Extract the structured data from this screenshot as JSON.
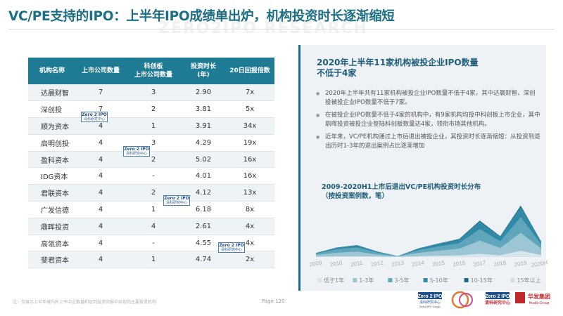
{
  "title": "VC/PE支持的IPO：上半年IPO成绩单出炉，机构投资时长逐渐缩短",
  "watermark": "ZERO2IPO RESEARCH",
  "table": {
    "headers": [
      "机构名称",
      "上市公司数量",
      "科创板\n上市公司数量",
      "投资时长\n(年)",
      "20日回报倍数"
    ],
    "rows": [
      [
        "达晨财智",
        "7",
        "3",
        "2.90",
        "7x"
      ],
      [
        "深创投",
        "7",
        "2",
        "3.81",
        "5x"
      ],
      [
        "顺为资本",
        "4",
        "1",
        "3.91",
        "34x"
      ],
      [
        "启明创投",
        "4",
        "3",
        "4.29",
        "19x"
      ],
      [
        "盈科资本",
        "4",
        "2",
        "5.02",
        "16x"
      ],
      [
        "IDG资本",
        "4",
        "-",
        "4.01",
        "16x"
      ],
      [
        "君联资本",
        "4",
        "2",
        "4.12",
        "13x"
      ],
      [
        "广发信德",
        "4",
        "1",
        "6.18",
        "8x"
      ],
      [
        "鼎晖投资",
        "4",
        "4",
        "2.61",
        "4x"
      ],
      [
        "高瓴资本",
        "4",
        "-",
        "4.55",
        "4x"
      ],
      [
        "斐君资本",
        "4",
        "1",
        "4.74",
        "2x"
      ]
    ]
  },
  "stamp": {
    "line1": "Zero 2 IPO",
    "line2": "清科研究中心",
    "line3": "Zero2IPO Research"
  },
  "footnote": "注：仅展示上半年境内外上市中企数量和达到投资回报中出现的主要投资机构",
  "page_label": "Page",
  "page_number": "120",
  "panel": {
    "title_line1": "2020年上半年11家机构被投企业IPO数量",
    "title_line2": "不低于4家",
    "bullets": [
      "2020年上半年共有11家机构被投企业IPO数量不低于4家，其中达晨财智、深创投被投企业IPO数量不低于7家。",
      "在被投企业IPO数量不低于4家的机构中，有9家机构均投中科创板上市企业，其中鼎晖投资被投企业登陆科创板数量达4家，领衔市场其他机构。",
      "近年来，VC/PE机构通过上市后退出被投企业，其投资时长逐渐缩短：从投资到退出历时1-3年的退出案例占比逐渐增加"
    ],
    "chart_title_line1": "2009-2020H1上市后退出VC/PE机构投资时长分布",
    "chart_title_line2": "（按投资案例数，笔）"
  },
  "chart_data": {
    "type": "area",
    "title": "2009-2020H1上市后退出VC/PE机构投资时长分布",
    "subtitle": "（按投资案例数，笔）",
    "categories": [
      "2009",
      "2010",
      "2011",
      "2012",
      "2013",
      "2014",
      "2015",
      "2016",
      "2017",
      "2018",
      "2019",
      "2020H1"
    ],
    "series": [
      {
        "name": "低于1年",
        "values": [
          2,
          4,
          5,
          3,
          1,
          5,
          8,
          10,
          20,
          10,
          38,
          12
        ]
      },
      {
        "name": "1-3年",
        "values": [
          10,
          22,
          28,
          12,
          2,
          20,
          30,
          40,
          80,
          45,
          110,
          38
        ]
      },
      {
        "name": "3-5年",
        "values": [
          8,
          20,
          25,
          12,
          2,
          16,
          26,
          34,
          70,
          40,
          95,
          26
        ]
      },
      {
        "name": "5-10年",
        "values": [
          4,
          10,
          12,
          6,
          1,
          10,
          16,
          22,
          45,
          28,
          60,
          16
        ]
      },
      {
        "name": "10-15年",
        "values": [
          1,
          2,
          3,
          1,
          0,
          2,
          3,
          5,
          8,
          5,
          12,
          3
        ]
      },
      {
        "name": "15年以上",
        "values": [
          0,
          1,
          1,
          0,
          0,
          1,
          1,
          1,
          2,
          1,
          3,
          1
        ]
      }
    ],
    "colors": [
      "#d6e6ec",
      "#9cc6d4",
      "#5fa6bd",
      "#2f8aa8",
      "#1c6c89",
      "#d3dde3"
    ],
    "legend_position": "bottom",
    "grid": false
  },
  "logos": {
    "zero2ipo_group": "Zero2IPO Group",
    "clearsky": "清科研究中心",
    "huafa": "华发集团",
    "huafa_en": "Huafa Group"
  }
}
